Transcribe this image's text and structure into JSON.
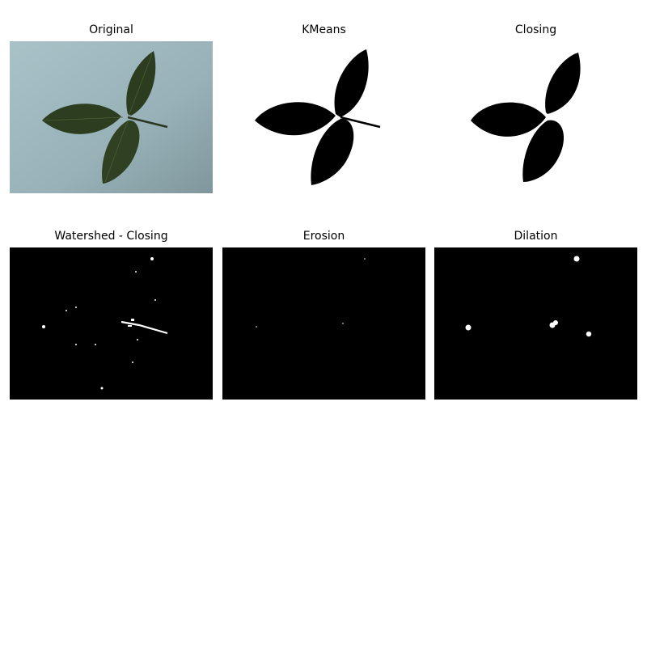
{
  "figure": {
    "panels": [
      {
        "title": "Original"
      },
      {
        "title": "KMeans"
      },
      {
        "title": "Closing"
      },
      {
        "title": "Watershed - Closing"
      },
      {
        "title": "Erosion"
      },
      {
        "title": "Dilation"
      }
    ]
  },
  "colors": {
    "background_paper": "#9cb5bd",
    "leaf_green": "#2e3f22",
    "black": "#000000",
    "white": "#ffffff"
  }
}
